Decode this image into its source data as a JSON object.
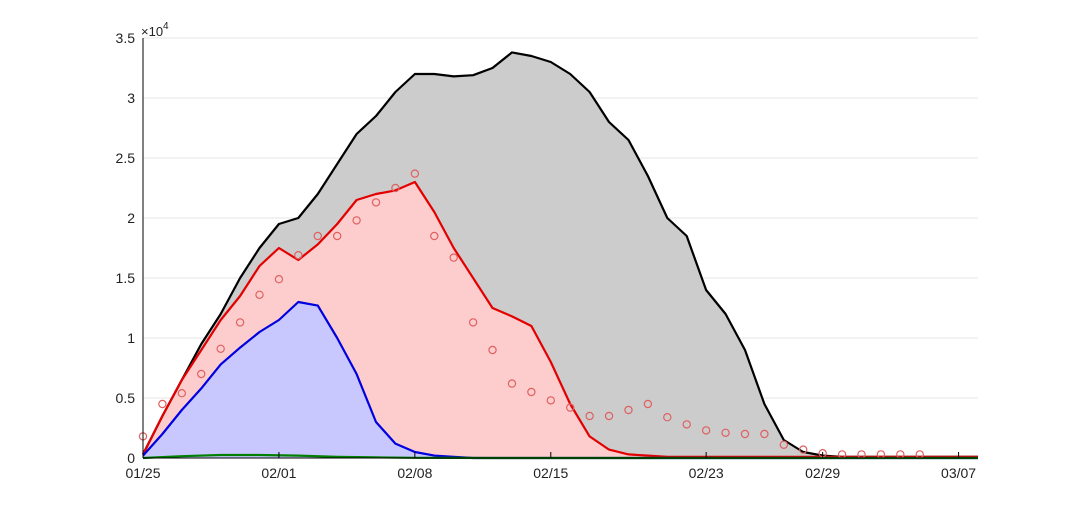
{
  "chart_data": {
    "type": "area",
    "title": "",
    "xlabel": "",
    "ylabel": "",
    "y_multiplier_label": "×10",
    "y_multiplier_exponent": "4",
    "x_tick_labels": [
      "01/25",
      "02/01",
      "02/08",
      "02/15",
      "02/23",
      "02/29",
      "03/07"
    ],
    "x_tick_days": [
      0,
      7,
      14,
      21,
      29,
      35,
      42
    ],
    "y_tick_labels": [
      "0",
      "0.5",
      "1",
      "1.5",
      "2",
      "2.5",
      "3",
      "3.5"
    ],
    "y_tick_values": [
      0,
      5000,
      10000,
      15000,
      20000,
      25000,
      30000,
      35000
    ],
    "xlim": [
      0,
      43
    ],
    "ylim": [
      0,
      35000
    ],
    "grid": "horizontal",
    "series": [
      {
        "fill": "#cccccc",
        "stroke": "#000000",
        "x": [
          0,
          1,
          2,
          3,
          4,
          5,
          6,
          7,
          8,
          9,
          10,
          11,
          12,
          13,
          14,
          15,
          16,
          17,
          18,
          19,
          20,
          21,
          22,
          23,
          24,
          25,
          26,
          27,
          28,
          29,
          30,
          31,
          32,
          33,
          34,
          35,
          36,
          37,
          38,
          39,
          40,
          41,
          42,
          43
        ],
        "values": [
          300,
          3500,
          6500,
          9500,
          12000,
          15000,
          17500,
          19500,
          20000,
          22000,
          24500,
          27000,
          28500,
          30500,
          32000,
          32000,
          31800,
          31900,
          32500,
          33800,
          33500,
          33000,
          32000,
          30500,
          28000,
          26500,
          23500,
          20000,
          18500,
          14000,
          12000,
          9000,
          4500,
          1500,
          500,
          200,
          100,
          100,
          100,
          100,
          100,
          100,
          100,
          100
        ]
      },
      {
        "fill": "#fdcdcd",
        "stroke": "#e30000",
        "x": [
          0,
          1,
          2,
          3,
          4,
          5,
          6,
          7,
          8,
          9,
          10,
          11,
          12,
          13,
          14,
          15,
          16,
          17,
          18,
          19,
          20,
          21,
          22,
          23,
          24,
          25,
          26,
          27,
          28,
          29,
          30,
          31,
          32,
          33,
          34,
          35,
          36,
          37,
          38,
          39,
          40,
          41,
          42,
          43
        ],
        "values": [
          300,
          3500,
          6500,
          9000,
          11500,
          13500,
          16000,
          17500,
          16500,
          17800,
          19500,
          21500,
          22000,
          22300,
          23000,
          20500,
          17500,
          15000,
          12500,
          11800,
          11000,
          8000,
          4500,
          1800,
          700,
          300,
          200,
          100,
          100,
          100,
          100,
          100,
          100,
          100,
          100,
          100,
          100,
          100,
          100,
          100,
          100,
          100,
          100,
          100
        ]
      },
      {
        "fill": "#c8c8ff",
        "stroke": "#0000e0",
        "x": [
          0,
          1,
          2,
          3,
          4,
          5,
          6,
          7,
          8,
          9,
          10,
          11,
          12,
          13,
          14,
          15,
          16,
          17,
          18,
          19,
          20,
          21,
          22,
          23,
          24,
          25,
          26,
          27,
          28,
          29,
          30,
          31,
          32,
          33,
          34,
          35,
          36,
          37,
          38,
          39,
          40,
          41,
          42,
          43
        ],
        "values": [
          200,
          2000,
          4000,
          5800,
          7800,
          9200,
          10500,
          11500,
          13000,
          12700,
          10000,
          7000,
          3000,
          1200,
          500,
          200,
          100,
          0,
          0,
          0,
          0,
          0,
          0,
          0,
          0,
          0,
          0,
          0,
          0,
          0,
          0,
          0,
          0,
          0,
          0,
          0,
          0,
          0,
          0,
          0,
          0,
          0,
          0,
          0
        ]
      },
      {
        "stroke": "#008000",
        "x": [
          0,
          2,
          4,
          6,
          8,
          10,
          12,
          14,
          16,
          18,
          20,
          25,
          30,
          35,
          40,
          43
        ],
        "values": [
          0,
          150,
          250,
          250,
          200,
          100,
          50,
          20,
          10,
          0,
          0,
          0,
          0,
          0,
          0,
          0
        ]
      }
    ],
    "points": {
      "marker": "circle",
      "color": "#e06060",
      "x": [
        0,
        1,
        2,
        3,
        4,
        5,
        6,
        7,
        8,
        9,
        10,
        11,
        12,
        13,
        14,
        15,
        16,
        17,
        18,
        19,
        20,
        21,
        22,
        23,
        24,
        25,
        26,
        27,
        28,
        29,
        30,
        31,
        32,
        33,
        34,
        35,
        36,
        37,
        38,
        39,
        40
      ],
      "values": [
        1800,
        4500,
        5400,
        7000,
        9100,
        11300,
        13600,
        14900,
        16900,
        18500,
        18500,
        19800,
        21300,
        22500,
        23700,
        18500,
        16700,
        11300,
        9000,
        6200,
        5500,
        4800,
        4200,
        3500,
        3500,
        4000,
        4500,
        3400,
        2800,
        2300,
        2100,
        2000,
        2000,
        1100,
        700,
        400,
        300,
        300,
        300,
        300,
        300
      ]
    }
  }
}
